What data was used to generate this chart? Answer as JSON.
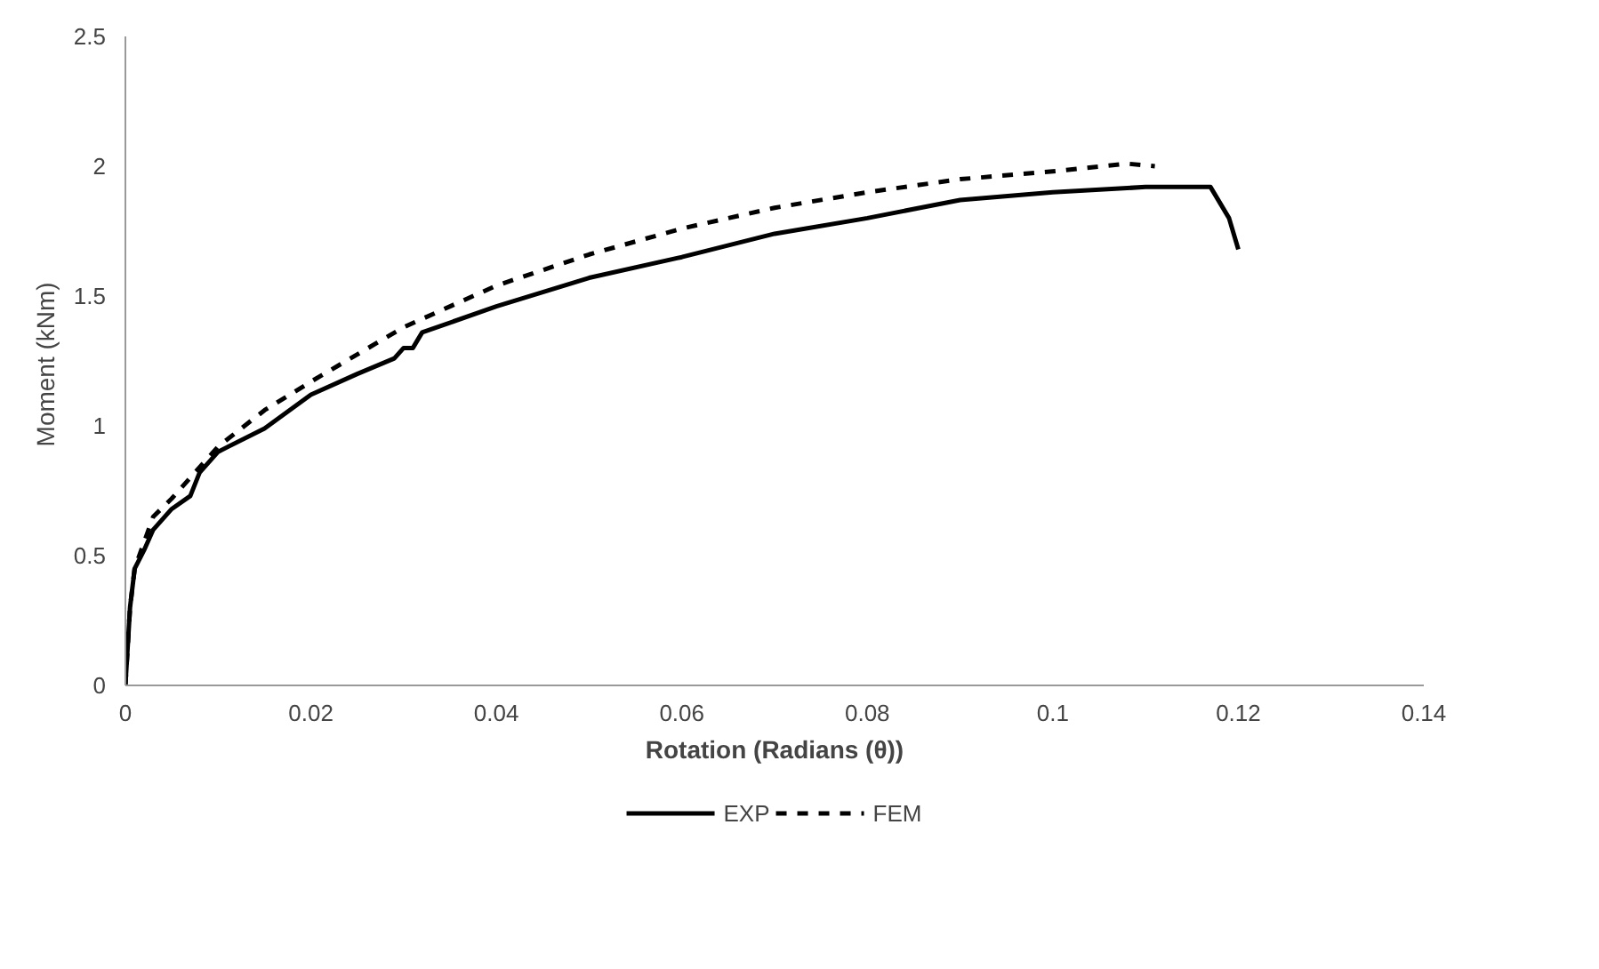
{
  "chart_data": {
    "type": "line",
    "xlabel": "Rotation (Radians (θ))",
    "ylabel": "Moment  (kNm)",
    "xlim": [
      0,
      0.14
    ],
    "xticks": [
      0,
      0.02,
      0.04,
      0.06,
      0.08,
      0.1,
      0.12,
      0.14
    ],
    "ylim": [
      0,
      2.5
    ],
    "yticks": [
      0,
      0.5,
      1,
      1.5,
      2,
      2.5
    ],
    "grid": false,
    "legend": "bottom",
    "marker": "none",
    "series": [
      {
        "name": "EXP",
        "color": "#000000",
        "line_style": "solid",
        "x": [
          0,
          0.0005,
          0.001,
          0.002,
          0.003,
          0.005,
          0.007,
          0.008,
          0.01,
          0.015,
          0.02,
          0.025,
          0.029,
          0.03,
          0.031,
          0.032,
          0.04,
          0.05,
          0.06,
          0.07,
          0.08,
          0.09,
          0.1,
          0.11,
          0.117,
          0.119,
          0.12
        ],
        "values": [
          0,
          0.3,
          0.45,
          0.52,
          0.6,
          0.68,
          0.73,
          0.82,
          0.9,
          0.99,
          1.12,
          1.2,
          1.26,
          1.3,
          1.3,
          1.36,
          1.46,
          1.57,
          1.65,
          1.74,
          1.8,
          1.87,
          1.9,
          1.92,
          1.92,
          1.8,
          1.68
        ]
      },
      {
        "name": "FEM",
        "color": "#000000",
        "line_style": "dashed",
        "x": [
          0,
          0.0005,
          0.001,
          0.002,
          0.003,
          0.005,
          0.01,
          0.015,
          0.02,
          0.03,
          0.04,
          0.05,
          0.06,
          0.07,
          0.08,
          0.09,
          0.1,
          0.108,
          0.111
        ],
        "values": [
          0,
          0.3,
          0.45,
          0.55,
          0.65,
          0.72,
          0.92,
          1.06,
          1.17,
          1.38,
          1.54,
          1.66,
          1.76,
          1.84,
          1.9,
          1.95,
          1.98,
          2.01,
          2.0
        ]
      }
    ]
  }
}
